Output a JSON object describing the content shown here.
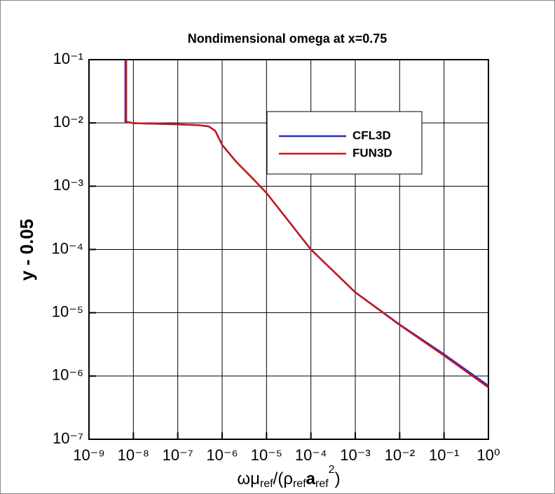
{
  "chart_data": {
    "type": "line",
    "title": "Nondimensional omega at x=0.75",
    "y_label": "y - 0.05",
    "x_label": [
      "ωμ",
      "ref",
      "/(ρ",
      "ref",
      "a",
      "ref",
      "2",
      ")"
    ],
    "x_log": true,
    "y_log": true,
    "grid": true,
    "legend": "upper right",
    "xlim": [
      1e-09,
      1
    ],
    "ylim": [
      1e-07,
      0.1
    ],
    "xticks": [
      {
        "value": 1e-09,
        "label": "10⁻⁹"
      },
      {
        "value": 1e-08,
        "label": "10⁻⁸"
      },
      {
        "value": 1e-07,
        "label": "10⁻⁷"
      },
      {
        "value": 1e-06,
        "label": "10⁻⁶"
      },
      {
        "value": 1e-05,
        "label": "10⁻⁵"
      },
      {
        "value": 0.0001,
        "label": "10⁻⁴"
      },
      {
        "value": 0.001,
        "label": "10⁻³"
      },
      {
        "value": 0.01,
        "label": "10⁻²"
      },
      {
        "value": 0.1,
        "label": "10⁻¹"
      },
      {
        "value": 1,
        "label": "10⁰"
      }
    ],
    "yticks": [
      {
        "value": 1e-07,
        "label": "10⁻⁷"
      },
      {
        "value": 1e-06,
        "label": "10⁻⁶"
      },
      {
        "value": 1e-05,
        "label": "10⁻⁵"
      },
      {
        "value": 0.0001,
        "label": "10⁻⁴"
      },
      {
        "value": 0.001,
        "label": "10⁻³"
      },
      {
        "value": 0.01,
        "label": "10⁻²"
      },
      {
        "value": 0.1,
        "label": "10⁻¹"
      }
    ],
    "series": [
      {
        "name": "CFL3D",
        "color": "#2a2ad0",
        "x": [
          6.6e-09,
          6.6e-09,
          7e-09,
          1e-08,
          1e-07,
          3e-07,
          5e-07,
          7e-07,
          1e-06,
          2e-06,
          5e-06,
          1e-05,
          0.0001,
          0.001,
          0.01,
          0.1,
          1
        ],
        "values": [
          0.1,
          0.0105,
          0.0104,
          0.0099,
          0.0095,
          0.0092,
          0.0088,
          0.0075,
          0.0045,
          0.0025,
          0.0013,
          0.00078,
          0.0001,
          2.1e-05,
          6.5e-06,
          2.2e-06,
          7e-07
        ]
      },
      {
        "name": "FUN3D",
        "color": "#c81818",
        "x": [
          6.9e-09,
          6.9e-09,
          7.2e-09,
          1e-08,
          1e-07,
          3e-07,
          5e-07,
          7e-07,
          1e-06,
          2e-06,
          5e-06,
          1e-05,
          0.0001,
          0.001,
          0.01,
          0.1,
          1
        ],
        "values": [
          0.1,
          0.0105,
          0.0104,
          0.0099,
          0.0095,
          0.0092,
          0.0088,
          0.0075,
          0.0045,
          0.0025,
          0.0013,
          0.00078,
          0.0001,
          2.1e-05,
          6.4e-06,
          2.1e-06,
          6.6e-07
        ]
      }
    ]
  }
}
